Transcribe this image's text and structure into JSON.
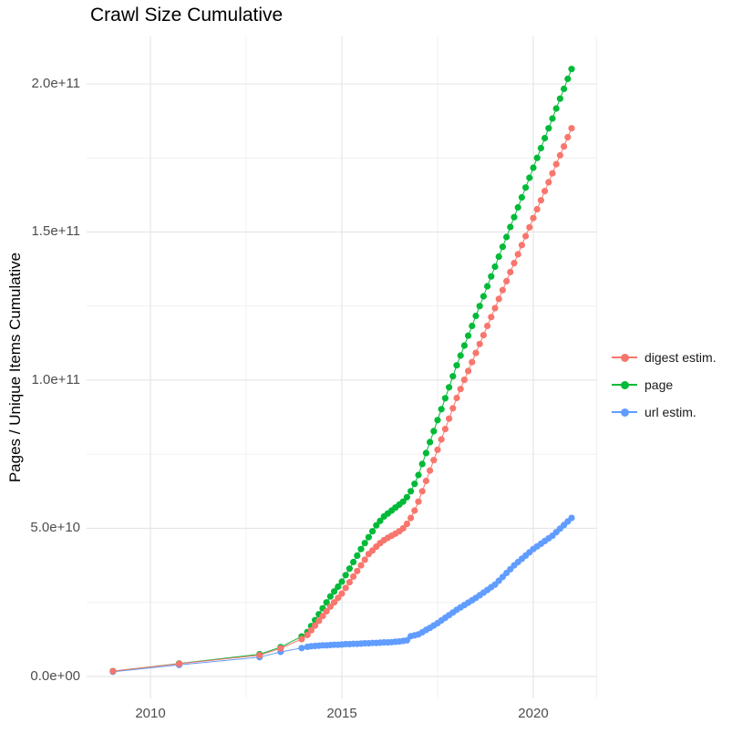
{
  "title": "Crawl Size Cumulative",
  "axes": {
    "y_label": "Pages / Unique Items Cumulative",
    "y_ticks": [
      "0.0e+00",
      "5.0e+10",
      "1.0e+11",
      "1.5e+11",
      "2.0e+11"
    ],
    "x_ticks": [
      "2010",
      "2015",
      "2020"
    ]
  },
  "legend": [
    {
      "label": "digest estim.",
      "color": "#F8766D"
    },
    {
      "label": "page",
      "color": "#00BA38"
    },
    {
      "label": "url estim.",
      "color": "#619CFF"
    }
  ],
  "colors": {
    "digest": "#F8766D",
    "page": "#00BA38",
    "url": "#619CFF",
    "grid_major": "#E4E4E4",
    "grid_minor": "#EFEFEF",
    "tick_text": "#4d4d4d",
    "title_text": "#000000"
  },
  "chart_data": {
    "type": "line",
    "title": "Crawl Size Cumulative",
    "xlabel": "",
    "ylabel": "Pages / Unique Items Cumulative",
    "legend_position": "right",
    "grid": true,
    "x_range": [
      2008.333,
      2021.667
    ],
    "y_range_billion": [
      -7.4,
      216.0
    ],
    "x_major_ticks": [
      2010,
      2015,
      2020
    ],
    "x_minor_ticks": [
      2012.5,
      2017.5,
      2021.65
    ],
    "y_major_ticks_billion": [
      0,
      50,
      100,
      150,
      200
    ],
    "y_minor_ticks_billion": [
      25,
      75,
      125,
      175
    ],
    "unit": "values in billions (1e9) of pages / unique items, cumulative per crawl",
    "x": [
      2009.02,
      2010.75,
      2012.85,
      2013.4,
      2013.95,
      2014.1,
      2014.2,
      2014.3,
      2014.4,
      2014.5,
      2014.6,
      2014.7,
      2014.8,
      2014.9,
      2015.0,
      2015.1,
      2015.2,
      2015.3,
      2015.4,
      2015.5,
      2015.6,
      2015.7,
      2015.8,
      2015.9,
      2016.0,
      2016.1,
      2016.2,
      2016.3,
      2016.4,
      2016.5,
      2016.6,
      2016.7,
      2016.8,
      2016.9,
      2017.0,
      2017.1,
      2017.2,
      2017.3,
      2017.4,
      2017.5,
      2017.6,
      2017.7,
      2017.8,
      2017.9,
      2018.0,
      2018.1,
      2018.2,
      2018.3,
      2018.4,
      2018.5,
      2018.6,
      2018.7,
      2018.8,
      2018.9,
      2019.0,
      2019.1,
      2019.2,
      2019.3,
      2019.4,
      2019.5,
      2019.6,
      2019.7,
      2019.8,
      2019.9,
      2020.0,
      2020.1,
      2020.2,
      2020.3,
      2020.4,
      2020.5,
      2020.6,
      2020.7,
      2020.8,
      2020.9,
      2021.0
    ],
    "series": [
      {
        "name": "digest estim.",
        "color": "#F8766D",
        "values_billion": [
          1.8,
          4.3,
          7.2,
          9.5,
          12.6,
          14.0,
          15.6,
          17.2,
          18.8,
          20.4,
          22.0,
          23.6,
          25.0,
          26.5,
          28.0,
          29.9,
          31.8,
          33.7,
          35.6,
          37.5,
          39.4,
          41.3,
          42.5,
          43.8,
          45.0,
          46.0,
          46.8,
          47.5,
          48.2,
          49.0,
          50.0,
          51.5,
          53.5,
          56.0,
          59.0,
          62.5,
          66.0,
          69.5,
          73.0,
          76.5,
          80.0,
          83.5,
          87.0,
          90.5,
          94.0,
          97.0,
          100.1,
          103.1,
          106.1,
          109.2,
          112.2,
          115.2,
          118.3,
          121.3,
          124.3,
          127.4,
          130.4,
          133.4,
          136.5,
          139.5,
          142.5,
          145.6,
          148.6,
          151.6,
          154.7,
          157.7,
          160.7,
          163.8,
          166.8,
          169.8,
          172.9,
          175.9,
          178.9,
          182.0,
          185.0
        ]
      },
      {
        "name": "page",
        "color": "#00BA38",
        "values_billion": [
          1.8,
          4.4,
          7.5,
          9.9,
          13.5,
          15.0,
          17.0,
          19.0,
          21.0,
          23.0,
          25.0,
          27.0,
          28.7,
          30.3,
          32.0,
          34.2,
          36.4,
          38.6,
          40.8,
          43.0,
          45.0,
          47.0,
          49.0,
          51.0,
          52.5,
          54.0,
          55.0,
          56.0,
          57.0,
          58.0,
          59.0,
          60.5,
          62.5,
          65.0,
          68.0,
          71.7,
          75.4,
          79.1,
          82.8,
          86.5,
          90.2,
          93.9,
          97.6,
          101.3,
          105.0,
          108.3,
          111.7,
          115.0,
          118.3,
          121.7,
          125.0,
          128.3,
          131.7,
          135.0,
          138.3,
          141.7,
          145.0,
          148.3,
          151.7,
          155.0,
          158.3,
          161.7,
          165.0,
          168.3,
          171.7,
          175.0,
          178.3,
          181.7,
          185.0,
          188.3,
          191.7,
          195.0,
          198.3,
          201.7,
          205.0
        ]
      },
      {
        "name": "url estim.",
        "color": "#619CFF",
        "values_billion": [
          1.6,
          3.9,
          6.5,
          8.3,
          9.6,
          10.0,
          10.2,
          10.3,
          10.4,
          10.5,
          10.5,
          10.6,
          10.7,
          10.7,
          10.8,
          10.9,
          10.9,
          11.0,
          11.0,
          11.1,
          11.2,
          11.2,
          11.3,
          11.3,
          11.4,
          11.5,
          11.5,
          11.6,
          11.7,
          11.8,
          12.0,
          12.2,
          13.6,
          13.9,
          14.2,
          14.9,
          15.7,
          16.4,
          17.2,
          18.0,
          18.9,
          19.8,
          20.7,
          21.6,
          22.5,
          23.3,
          24.1,
          24.9,
          25.7,
          26.5,
          27.4,
          28.3,
          29.2,
          30.1,
          31.0,
          32.3,
          33.6,
          34.9,
          36.2,
          37.5,
          38.6,
          39.7,
          40.8,
          41.9,
          43.0,
          43.9,
          44.8,
          45.7,
          46.6,
          47.5,
          48.7,
          49.9,
          51.1,
          52.3,
          53.5
        ]
      }
    ]
  }
}
